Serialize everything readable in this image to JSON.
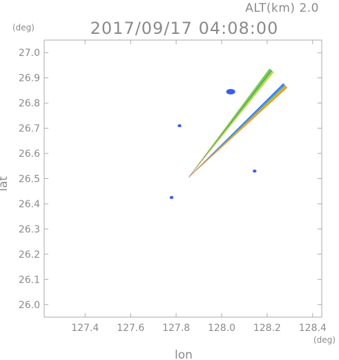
{
  "header": {
    "altitude_label": "ALT(km)  2.0",
    "timestamp": "2017/09/17 04:08:00"
  },
  "chart_data": {
    "type": "scatter",
    "title": "2017/09/17 04:08:00",
    "xlabel": "lon",
    "ylabel": "lat",
    "x_unit": "(deg)",
    "y_unit": "(deg)",
    "xlim": [
      127.22,
      128.44
    ],
    "ylim": [
      25.95,
      27.05
    ],
    "x_ticks": [
      127.4,
      127.6,
      127.8,
      128.0,
      128.2,
      128.4
    ],
    "x_tick_labels": [
      "127.4",
      "127.6",
      "127.8",
      "128.0",
      "128.2",
      "128.4"
    ],
    "y_ticks": [
      26.0,
      26.1,
      26.2,
      26.3,
      26.4,
      26.5,
      26.6,
      26.7,
      26.8,
      26.9,
      27.0
    ],
    "y_tick_labels": [
      "26.0",
      "26.1",
      "26.2",
      "26.3",
      "26.4",
      "26.5",
      "26.6",
      "26.7",
      "26.8",
      "26.9",
      "27.0"
    ],
    "grid": false,
    "radar_origin": {
      "lon": 127.855,
      "lat": 26.505
    },
    "beams": [
      {
        "end_lon": 128.22,
        "end_lat": 26.93,
        "colors": [
          "#7fd14a",
          "#3fc6a0",
          "#b8e23a"
        ]
      },
      {
        "end_lon": 128.28,
        "end_lat": 26.87,
        "colors": [
          "#3a6cf0",
          "#2fb7e8",
          "#c7d83a",
          "#e8952a"
        ]
      }
    ],
    "echoes": [
      {
        "lon": 128.04,
        "lat": 26.845,
        "color": "#3a5cf0"
      },
      {
        "lon": 127.815,
        "lat": 26.71,
        "color": "#3a5cf0"
      },
      {
        "lon": 127.78,
        "lat": 26.425,
        "color": "#3a5cf0"
      },
      {
        "lon": 128.145,
        "lat": 26.53,
        "color": "#3a5cf0"
      }
    ]
  }
}
